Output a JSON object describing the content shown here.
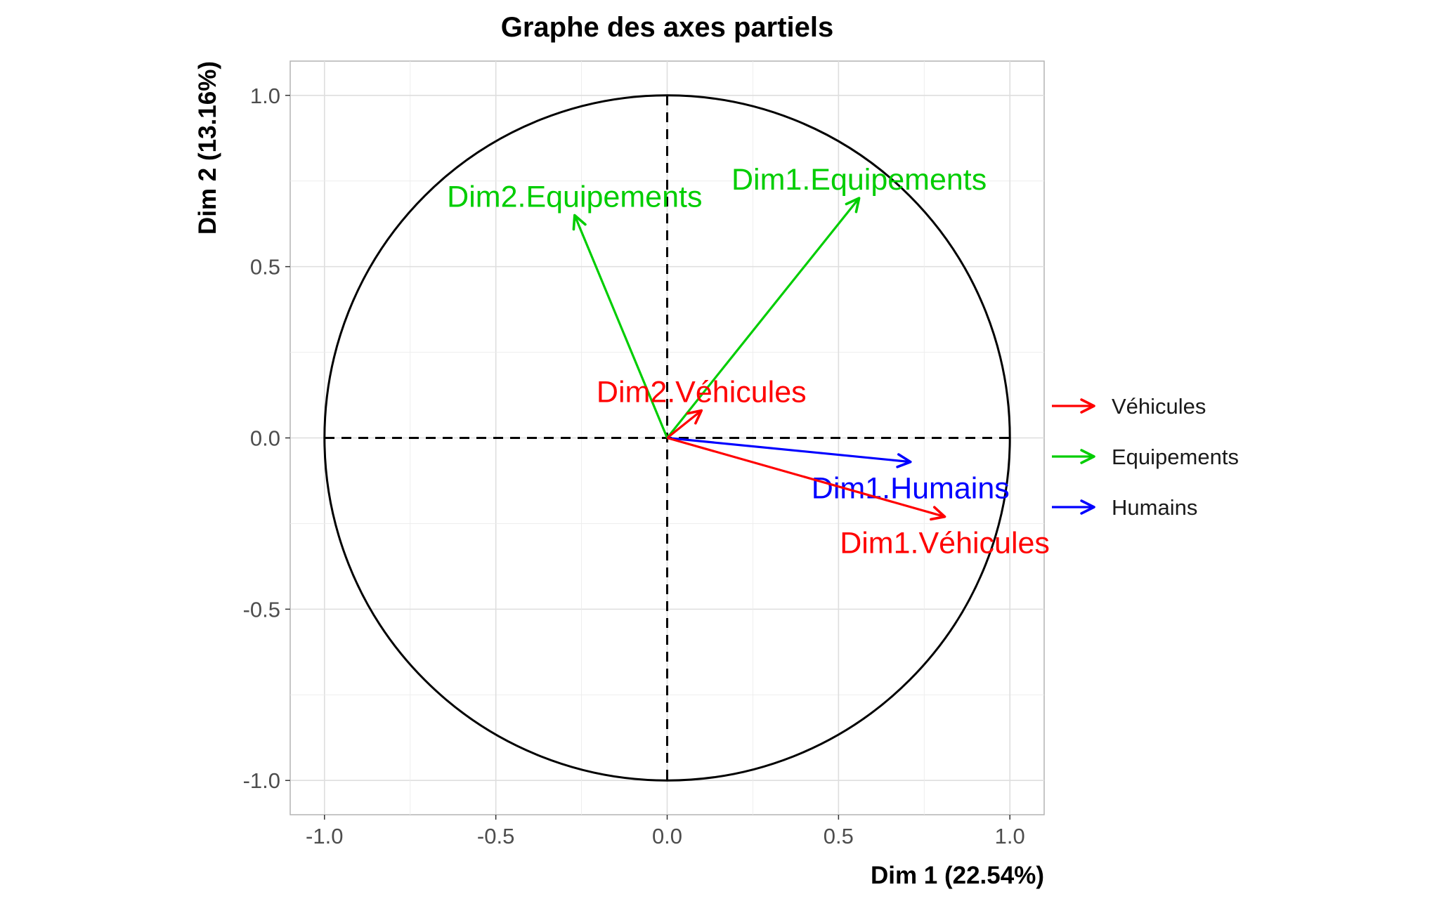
{
  "chart_data": {
    "type": "scatter",
    "title": "Graphe des axes partiels",
    "xlabel": "Dim 1 (22.54%)",
    "ylabel": "Dim 2 (13.16%)",
    "xlim": [
      -1.1,
      1.1
    ],
    "ylim": [
      -1.1,
      1.1
    ],
    "x_ticks": [
      "-1.0",
      "-0.5",
      "0.0",
      "0.5",
      "1.0"
    ],
    "y_ticks": [
      "-1.0",
      "-0.5",
      "0.0",
      "0.5",
      "1.0"
    ],
    "grid": true,
    "unit_circle": true,
    "legend_position": "right",
    "groups": [
      {
        "name": "Véhicules",
        "color": "#ff0000"
      },
      {
        "name": "Equipements",
        "color": "#00cd00"
      },
      {
        "name": "Humains",
        "color": "#0000ff"
      }
    ],
    "vectors": [
      {
        "label": "Dim1.Equipements",
        "group": "Equipements",
        "x": 0.56,
        "y": 0.7
      },
      {
        "label": "Dim2.Equipements",
        "group": "Equipements",
        "x": -0.27,
        "y": 0.65
      },
      {
        "label": "Dim2.Véhicules",
        "group": "Véhicules",
        "x": 0.1,
        "y": 0.08
      },
      {
        "label": "Dim1.Humains",
        "group": "Humains",
        "x": 0.71,
        "y": -0.07
      },
      {
        "label": "Dim1.Véhicules",
        "group": "Véhicules",
        "x": 0.81,
        "y": -0.23
      }
    ]
  }
}
